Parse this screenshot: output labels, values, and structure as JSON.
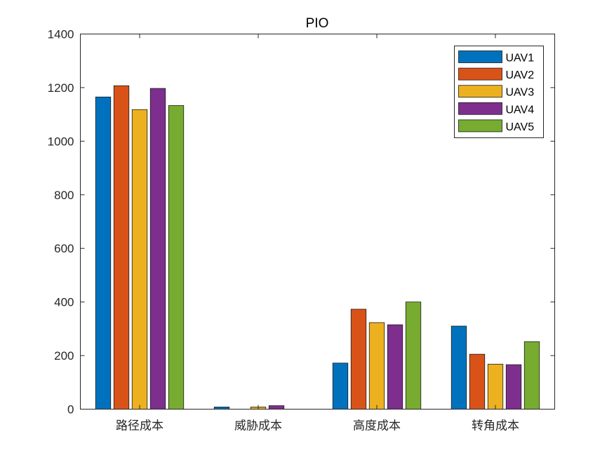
{
  "chart_data": {
    "type": "bar",
    "title": "PIO",
    "xlabel": "",
    "ylabel": "",
    "ylim": [
      0,
      1400
    ],
    "yticks": [
      0,
      200,
      400,
      600,
      800,
      1000,
      1200,
      1400
    ],
    "categories": [
      "路径成本",
      "威胁成本",
      "高度成本",
      "转角成本"
    ],
    "series": [
      {
        "name": "UAV1",
        "color": "#0072BD",
        "values": [
          1165,
          8,
          172,
          310
        ]
      },
      {
        "name": "UAV2",
        "color": "#D95319",
        "values": [
          1207,
          0,
          373,
          205
        ]
      },
      {
        "name": "UAV3",
        "color": "#EDB120",
        "values": [
          1118,
          8,
          323,
          168
        ]
      },
      {
        "name": "UAV4",
        "color": "#7E2F8E",
        "values": [
          1197,
          13,
          315,
          166
        ]
      },
      {
        "name": "UAV5",
        "color": "#77AC30",
        "values": [
          1133,
          0,
          400,
          252
        ]
      }
    ],
    "legend_position": "top-right",
    "grid": false
  }
}
